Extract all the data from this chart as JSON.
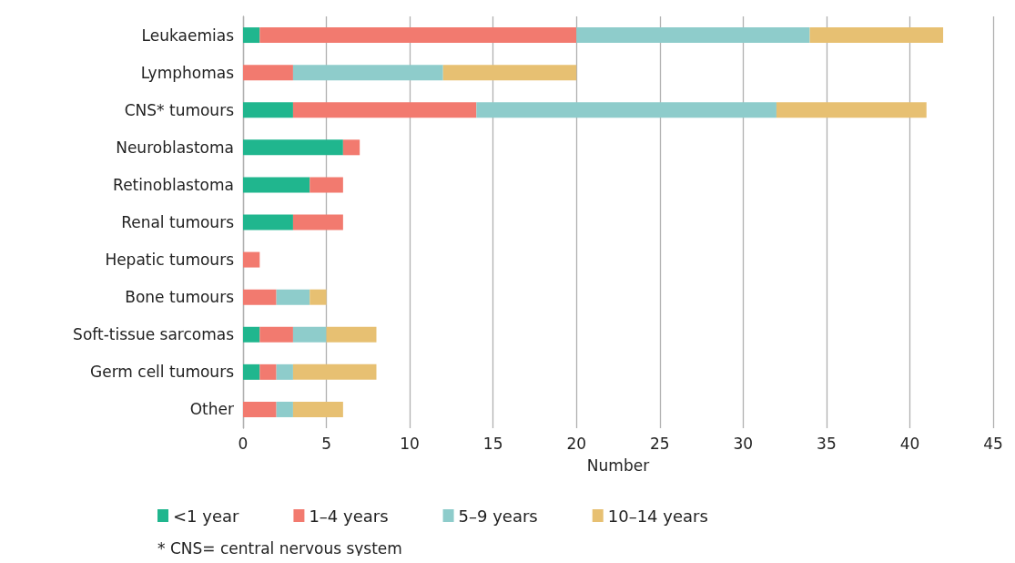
{
  "chart_data": {
    "type": "bar",
    "orientation": "horizontal",
    "stacked": true,
    "xlabel": "Number",
    "categories": [
      "Leukaemias",
      "Lymphomas",
      "CNS* tumours",
      "Neuroblastoma",
      "Retinoblastoma",
      "Renal tumours",
      "Hepatic tumours",
      "Bone tumours",
      "Soft-tissue sarcomas",
      "Germ cell tumours",
      "Other"
    ],
    "series": [
      {
        "name": "<1 year",
        "color": "#20b68e",
        "values": [
          1,
          0,
          3,
          6,
          4,
          3,
          0,
          0,
          1,
          1,
          0
        ]
      },
      {
        "name": "1–4 years",
        "color": "#f27a6f",
        "values": [
          19,
          3,
          11,
          1,
          2,
          3,
          1,
          2,
          2,
          1,
          2
        ]
      },
      {
        "name": "5–9 years",
        "color": "#8ecccb",
        "values": [
          14,
          9,
          18,
          0,
          0,
          0,
          0,
          2,
          2,
          1,
          1
        ]
      },
      {
        "name": "10–14 years",
        "color": "#e7c072",
        "values": [
          8,
          8,
          9,
          0,
          0,
          0,
          0,
          1,
          3,
          5,
          3
        ]
      }
    ],
    "xlim": [
      0,
      45
    ],
    "xticks": [
      0,
      5,
      10,
      15,
      20,
      25,
      30,
      35,
      40,
      45
    ],
    "grid": "x",
    "legend": "bottom",
    "annotations": [
      "* CNS= central nervous system"
    ]
  }
}
